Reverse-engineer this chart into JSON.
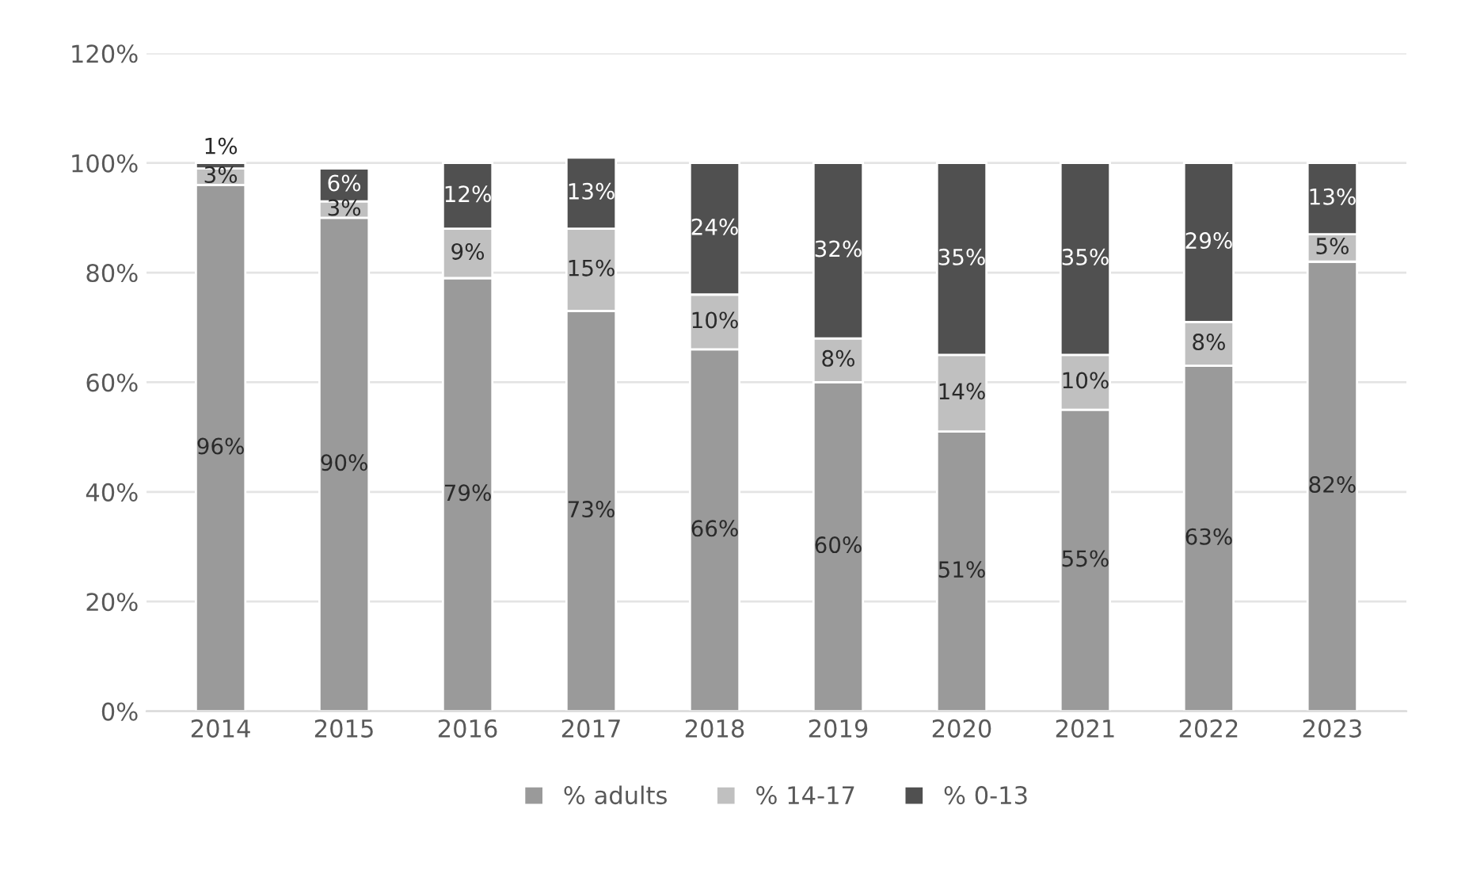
{
  "chart_data": {
    "type": "bar",
    "stacked": true,
    "categories": [
      "2014",
      "2015",
      "2016",
      "2017",
      "2018",
      "2019",
      "2020",
      "2021",
      "2022",
      "2023"
    ],
    "series": [
      {
        "name": "% adults",
        "color": "#9a9a9a",
        "values": [
          96,
          90,
          79,
          73,
          66,
          60,
          51,
          55,
          63,
          82
        ],
        "value_labels": [
          "96%",
          "90%",
          "79%",
          "73%",
          "66%",
          "60%",
          "51%",
          "55%",
          "63%",
          "82%"
        ]
      },
      {
        "name": "% 14-17",
        "color": "#c0c0c0",
        "values": [
          3,
          3,
          9,
          15,
          10,
          8,
          14,
          10,
          8,
          5
        ],
        "value_labels": [
          "3%",
          "3%",
          "9%",
          "15%",
          "10%",
          "8%",
          "14%",
          "10%",
          "8%",
          "5%"
        ]
      },
      {
        "name": "% 0-13",
        "color": "#505050",
        "values": [
          1,
          6,
          12,
          13,
          24,
          32,
          35,
          35,
          29,
          13
        ],
        "value_labels": [
          "1%",
          "6%",
          "12%",
          "13%",
          "24%",
          "32%",
          "35%",
          "35%",
          "29%",
          "13%"
        ]
      }
    ],
    "ylim": [
      0,
      120
    ],
    "yticks": [
      {
        "value": 0,
        "label": "0%"
      },
      {
        "value": 20,
        "label": "20%"
      },
      {
        "value": 40,
        "label": "40%"
      },
      {
        "value": 60,
        "label": "60%"
      },
      {
        "value": 80,
        "label": "80%"
      },
      {
        "value": 100,
        "label": "100%"
      },
      {
        "value": 120,
        "label": "120%"
      }
    ],
    "grid": "y",
    "legend": "bottom"
  }
}
